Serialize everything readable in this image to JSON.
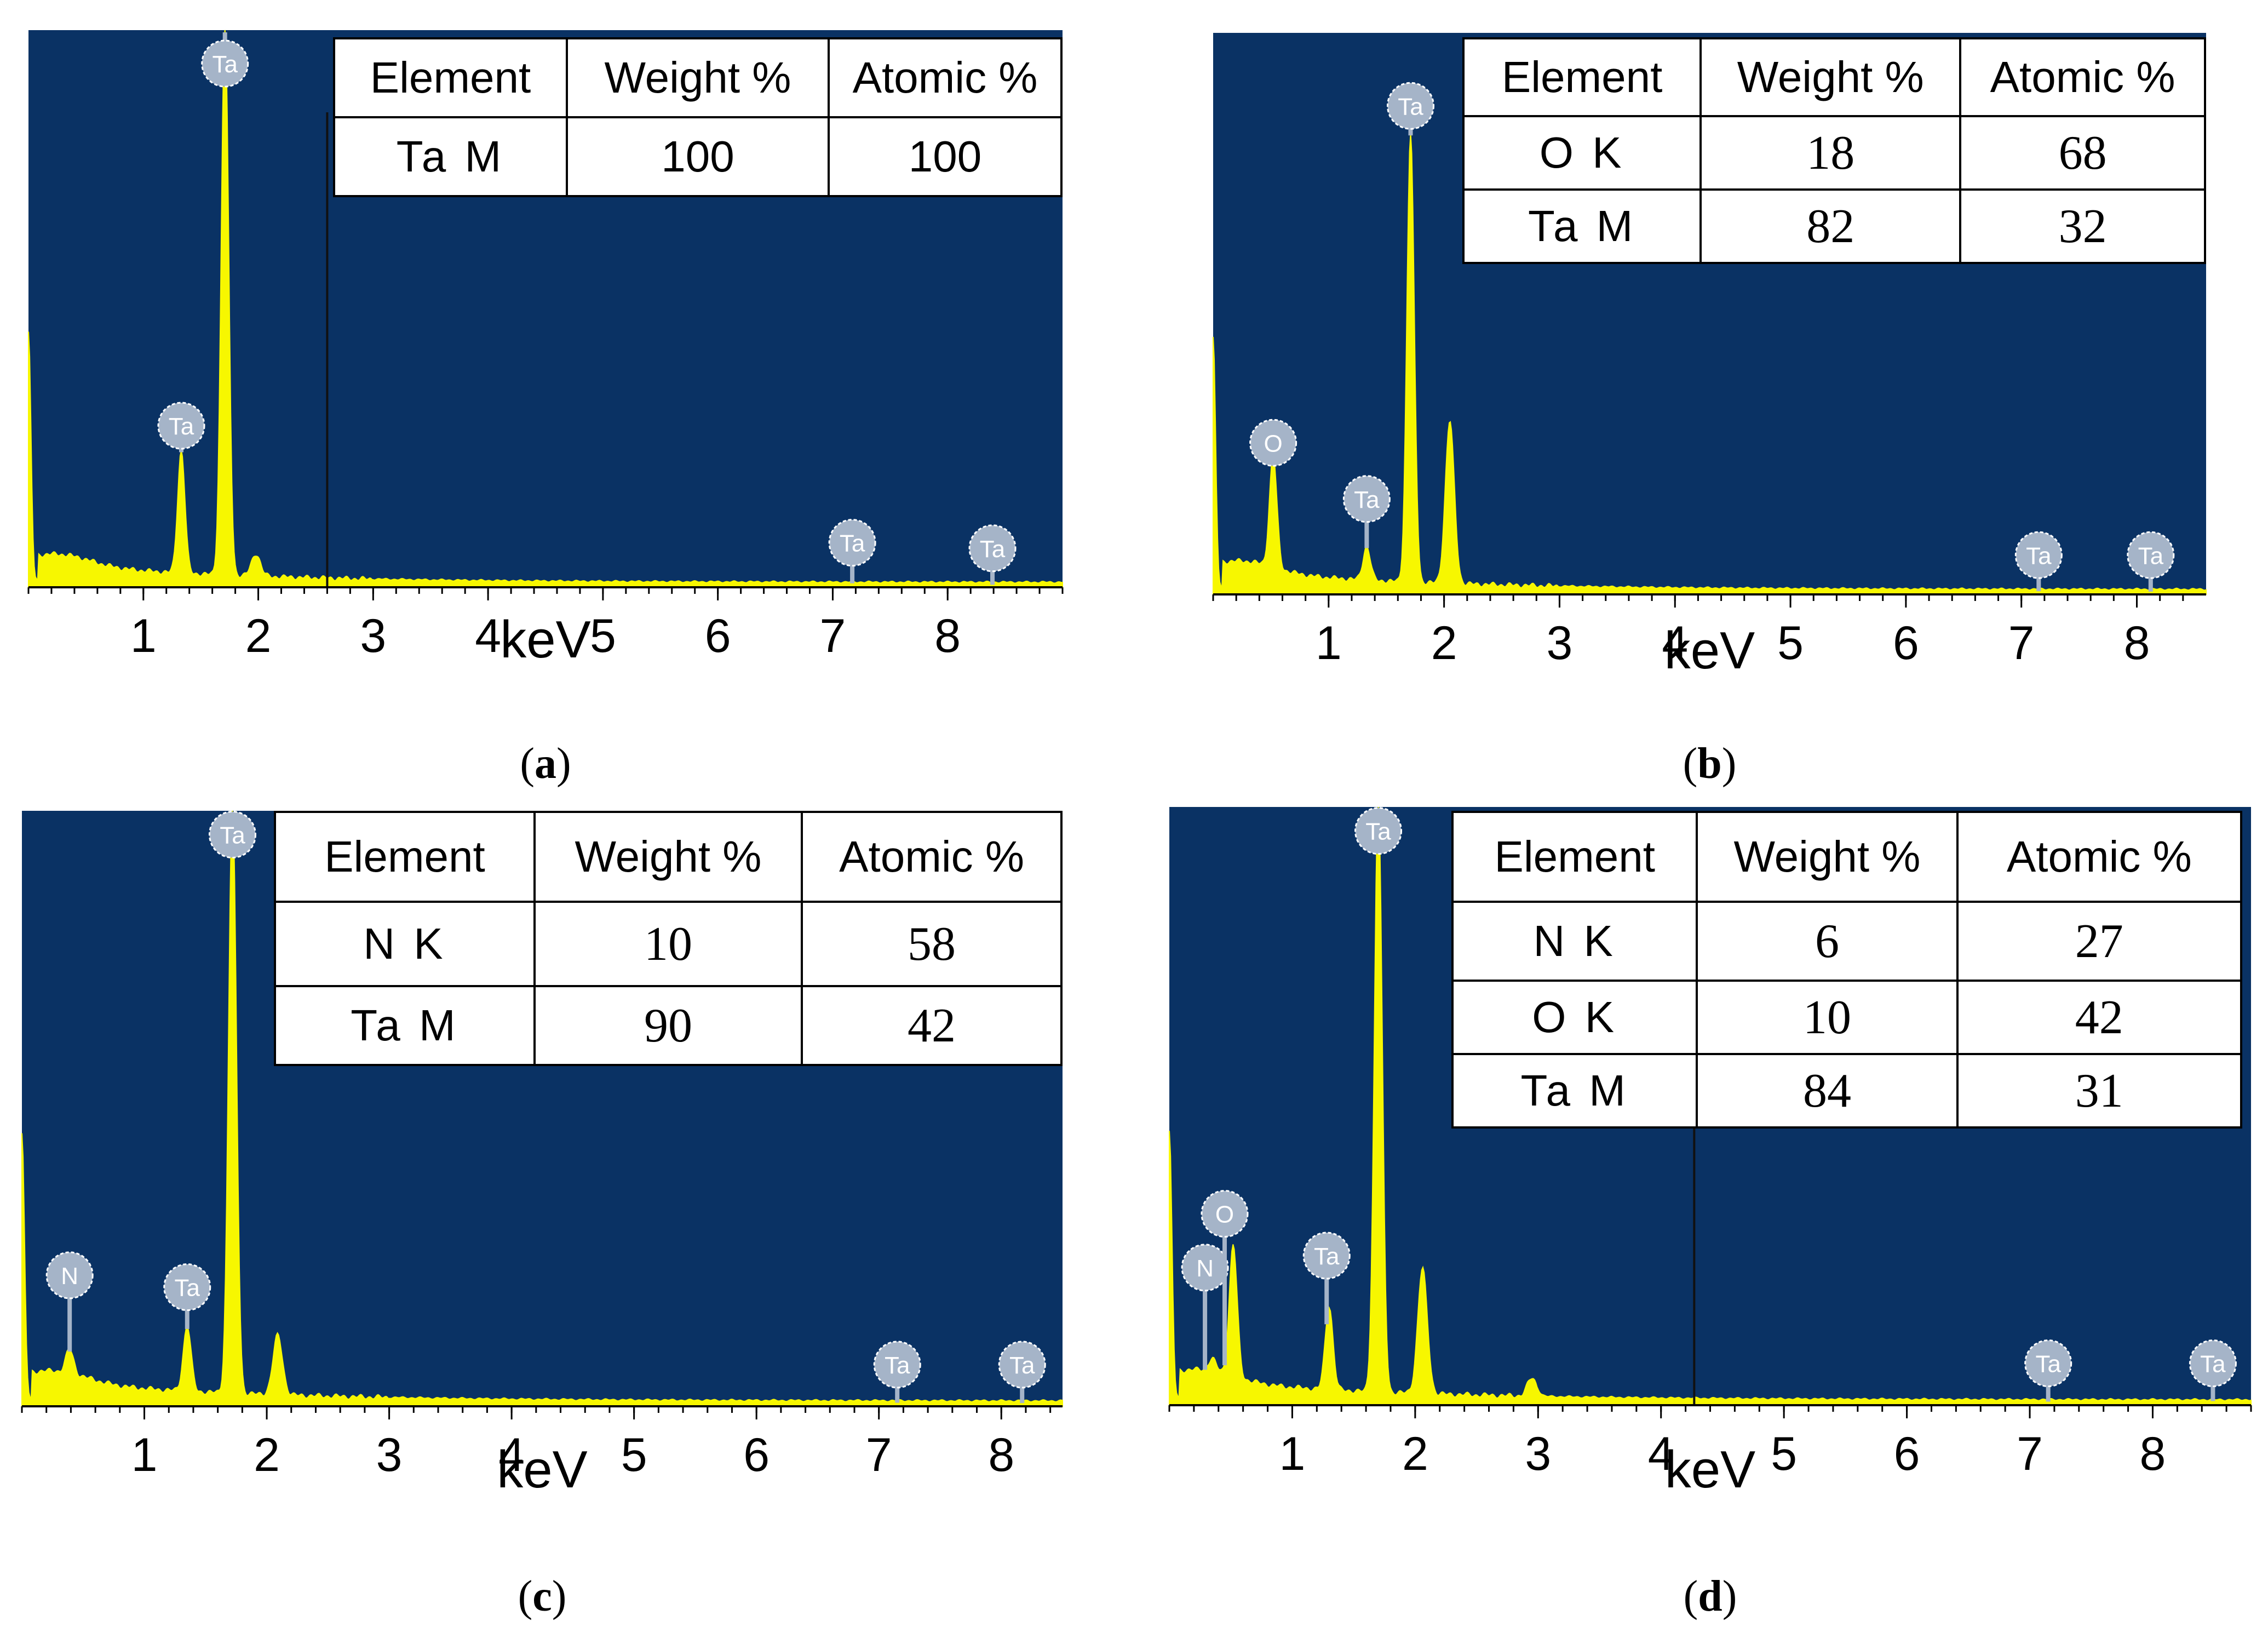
{
  "colors": {
    "plot_bg": "#0a3264",
    "spectrum": "#f7f700",
    "marker": "#a5b4c8"
  },
  "chart_data": [
    {
      "panel": "a",
      "type": "area",
      "caption": "a",
      "xlabel": "keV",
      "x_ticks": [
        1,
        2,
        3,
        4,
        5,
        6,
        7,
        8
      ],
      "xlim": [
        0,
        9.0
      ],
      "ylim": [
        0,
        100
      ],
      "peaks": [
        {
          "element": "Ta",
          "x": 1.33,
          "height": 22
        },
        {
          "element": "Ta",
          "x": 1.71,
          "height": 100
        },
        {
          "element": "Ta",
          "x": 1.98,
          "height": 4
        }
      ],
      "markers": [
        {
          "label": "Ta",
          "x": 1.71,
          "y": 94
        },
        {
          "label": "Ta",
          "x": 1.33,
          "y": 29
        },
        {
          "label": "Ta",
          "x": 7.17,
          "y": 8
        },
        {
          "label": "Ta",
          "x": 8.39,
          "y": 7
        }
      ],
      "cursor_x": 2.6,
      "table": {
        "headers": [
          "Element",
          "Weight %",
          "Atomic %"
        ],
        "rows": [
          {
            "element": "Ta  M",
            "weight": "100",
            "atomic": "100"
          }
        ]
      }
    },
    {
      "panel": "b",
      "type": "area",
      "caption": "b",
      "xlabel": "keV",
      "x_ticks": [
        1,
        2,
        3,
        4,
        5,
        6,
        7,
        8
      ],
      "xlim": [
        0,
        8.6
      ],
      "ylim": [
        0,
        100
      ],
      "peaks": [
        {
          "element": "O",
          "x": 0.52,
          "height": 20
        },
        {
          "element": "Ta",
          "x": 1.33,
          "height": 6
        },
        {
          "element": "Ta",
          "x": 1.71,
          "height": 80
        },
        {
          "element": "Ta",
          "x": 2.05,
          "height": 29
        }
      ],
      "markers": [
        {
          "label": "O",
          "x": 0.52,
          "y": 27
        },
        {
          "label": "Ta",
          "x": 1.71,
          "y": 87
        },
        {
          "label": "Ta",
          "x": 1.33,
          "y": 17
        },
        {
          "label": "Ta",
          "x": 7.15,
          "y": 7
        },
        {
          "label": "Ta",
          "x": 8.12,
          "y": 7
        }
      ],
      "cursor_x": null,
      "table": {
        "headers": [
          "Element",
          "Weight %",
          "Atomic %"
        ],
        "rows": [
          {
            "element": "O  K",
            "weight": "18",
            "atomic": "68"
          },
          {
            "element": "Ta  M",
            "weight": "82",
            "atomic": "32"
          }
        ]
      }
    },
    {
      "panel": "c",
      "type": "area",
      "caption": "c",
      "xlabel": "keV",
      "x_ticks": [
        1,
        2,
        3,
        4,
        5,
        6,
        7,
        8
      ],
      "xlim": [
        0,
        8.5
      ],
      "ylim": [
        0,
        100
      ],
      "peaks": [
        {
          "element": "N",
          "x": 0.39,
          "height": 4
        },
        {
          "element": "Ta",
          "x": 1.35,
          "height": 11
        },
        {
          "element": "Ta",
          "x": 1.72,
          "height": 100
        },
        {
          "element": "Ta",
          "x": 2.09,
          "height": 10
        }
      ],
      "markers": [
        {
          "label": "N",
          "x": 0.39,
          "y": 22
        },
        {
          "label": "Ta",
          "x": 1.72,
          "y": 96
        },
        {
          "label": "Ta",
          "x": 1.35,
          "y": 20
        },
        {
          "label": "Ta",
          "x": 7.15,
          "y": 7
        },
        {
          "label": "Ta",
          "x": 8.17,
          "y": 7
        }
      ],
      "cursor_x": null,
      "table": {
        "headers": [
          "Element",
          "Weight %",
          "Atomic %"
        ],
        "rows": [
          {
            "element": "N  K",
            "weight": "10",
            "atomic": "58"
          },
          {
            "element": "Ta  M",
            "weight": "90",
            "atomic": "42"
          }
        ]
      }
    },
    {
      "panel": "d",
      "type": "area",
      "caption": "d",
      "xlabel": "keV",
      "x_ticks": [
        1,
        2,
        3,
        4,
        5,
        6,
        7,
        8
      ],
      "xlim": [
        0,
        8.8
      ],
      "ylim": [
        0,
        100
      ],
      "peaks": [
        {
          "element": "N",
          "x": 0.35,
          "height": 2
        },
        {
          "element": "O",
          "x": 0.52,
          "height": 22
        },
        {
          "element": "Ta",
          "x": 1.3,
          "height": 14
        },
        {
          "element": "Ta",
          "x": 1.7,
          "height": 100
        },
        {
          "element": "Ta",
          "x": 2.06,
          "height": 21
        },
        {
          "element": "Ta",
          "x": 2.95,
          "height": 3
        }
      ],
      "markers": [
        {
          "label": "N",
          "x": 0.29,
          "y": 23
        },
        {
          "label": "O",
          "x": 0.45,
          "y": 32
        },
        {
          "label": "Ta",
          "x": 1.7,
          "y": 96
        },
        {
          "label": "Ta",
          "x": 1.28,
          "y": 25
        },
        {
          "label": "Ta",
          "x": 7.15,
          "y": 7
        },
        {
          "label": "Ta",
          "x": 8.49,
          "y": 7
        }
      ],
      "cursor_x": 4.27,
      "table": {
        "headers": [
          "Element",
          "Weight %",
          "Atomic %"
        ],
        "rows": [
          {
            "element": "N  K",
            "weight": "6",
            "atomic": "27"
          },
          {
            "element": "O  K",
            "weight": "10",
            "atomic": "42"
          },
          {
            "element": "Ta  M",
            "weight": "84",
            "atomic": "31"
          }
        ]
      }
    }
  ]
}
